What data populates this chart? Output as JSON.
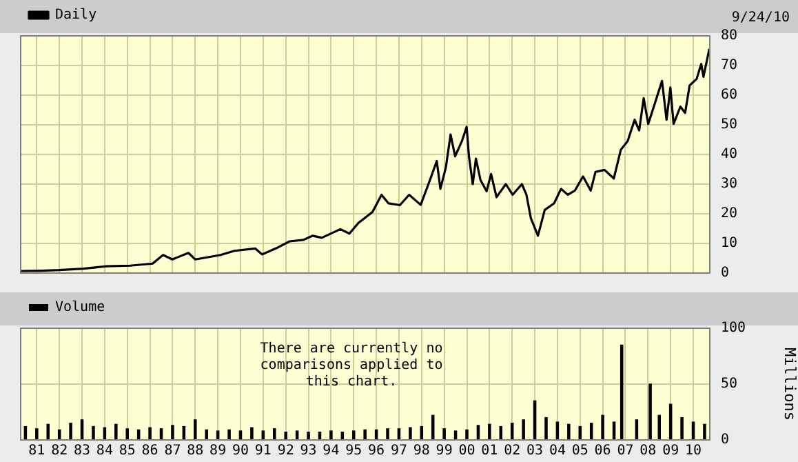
{
  "chart_data": [
    {
      "type": "line",
      "xlim": [
        1980.29,
        2010.73
      ],
      "xticks": [
        {
          "value": 1981,
          "label": null
        },
        {
          "value": 1982,
          "label": null
        },
        {
          "value": 1983,
          "label": null
        },
        {
          "value": 1984,
          "label": null
        },
        {
          "value": 1985,
          "label": null
        },
        {
          "value": 1986,
          "label": null
        },
        {
          "value": 1987,
          "label": null
        },
        {
          "value": 1988,
          "label": null
        },
        {
          "value": 1989,
          "label": null
        },
        {
          "value": 1990,
          "label": null
        },
        {
          "value": 1991,
          "label": null
        },
        {
          "value": 1992,
          "label": null
        },
        {
          "value": 1993,
          "label": null
        },
        {
          "value": 1994,
          "label": null
        },
        {
          "value": 1995,
          "label": null
        },
        {
          "value": 1996,
          "label": null
        },
        {
          "value": 1997,
          "label": null
        },
        {
          "value": 1998,
          "label": null
        },
        {
          "value": 1999,
          "label": null
        },
        {
          "value": 2000,
          "label": null
        },
        {
          "value": 2001,
          "label": null
        },
        {
          "value": 2002,
          "label": null
        },
        {
          "value": 2003,
          "label": null
        },
        {
          "value": 2004,
          "label": null
        },
        {
          "value": 2005,
          "label": null
        },
        {
          "value": 2006,
          "label": null
        },
        {
          "value": 2007,
          "label": null
        },
        {
          "value": 2008,
          "label": null
        },
        {
          "value": 2009,
          "label": null
        },
        {
          "value": 2010,
          "label": null
        }
      ],
      "ylim": [
        0,
        80
      ],
      "yticks": [
        0,
        10,
        20,
        30,
        40,
        50,
        60,
        70,
        80
      ],
      "grid": true,
      "legend": "top left",
      "tick_labels": "y",
      "annotations": [
        "9/24/10"
      ],
      "series": [
        {
          "name": "Daily",
          "color": "#000000",
          "x": [
            1980.29,
            1981.2,
            1982.0,
            1983.07,
            1984.08,
            1985.12,
            1986.12,
            1986.58,
            1986.99,
            1987.7,
            1988.0,
            1989.12,
            1989.73,
            1990.65,
            1990.95,
            1991.56,
            1992.17,
            1992.78,
            1993.19,
            1993.59,
            1994.41,
            1994.81,
            1995.22,
            1995.83,
            1996.23,
            1996.54,
            1997.04,
            1997.45,
            1997.96,
            1998.37,
            1998.67,
            1998.83,
            1999.07,
            1999.28,
            1999.48,
            1999.79,
            1999.99,
            2000.09,
            2000.26,
            2000.4,
            2000.6,
            2000.87,
            2001.07,
            2001.31,
            2001.72,
            2002.02,
            2002.43,
            2002.63,
            2002.83,
            2003.14,
            2003.44,
            2003.85,
            2004.16,
            2004.46,
            2004.77,
            2005.13,
            2005.47,
            2005.68,
            2006.08,
            2006.49,
            2006.8,
            2007.1,
            2007.41,
            2007.61,
            2007.81,
            2008.01,
            2008.32,
            2008.62,
            2008.82,
            2008.99,
            2009.13,
            2009.43,
            2009.64,
            2009.84,
            2010.15,
            2010.35,
            2010.45,
            2010.71
          ],
          "values": [
            0.7,
            0.8,
            1.0,
            1.5,
            2.3,
            2.5,
            3.2,
            6.1,
            4.6,
            6.8,
            4.6,
            6.1,
            7.5,
            8.3,
            6.3,
            8.3,
            10.7,
            11.2,
            12.6,
            11.9,
            14.8,
            13.3,
            17,
            20.6,
            26.4,
            23.5,
            22.9,
            26.4,
            23,
            31.4,
            37.8,
            28.4,
            35.6,
            46.7,
            39.4,
            44.7,
            49.3,
            39.4,
            30,
            38.6,
            31.4,
            27.6,
            33.4,
            25.6,
            30,
            26.4,
            30,
            26.4,
            18.4,
            12.6,
            21.3,
            23.5,
            28.4,
            26.4,
            27.8,
            32.6,
            27.8,
            34.1,
            34.8,
            31.9,
            41.6,
            44.5,
            51.7,
            48.1,
            59,
            50.3,
            57.6,
            64.8,
            51.7,
            62.6,
            50.3,
            56.1,
            54,
            63.3,
            65.5,
            70.5,
            66.2,
            75.6
          ]
        }
      ]
    },
    {
      "type": "bar",
      "xlim": [
        1980.29,
        2010.73
      ],
      "xticks": [
        {
          "value": 1981,
          "label": "81"
        },
        {
          "value": 1982,
          "label": "82"
        },
        {
          "value": 1983,
          "label": "83"
        },
        {
          "value": 1984,
          "label": "84"
        },
        {
          "value": 1985,
          "label": "85"
        },
        {
          "value": 1986,
          "label": "86"
        },
        {
          "value": 1987,
          "label": "87"
        },
        {
          "value": 1988,
          "label": "88"
        },
        {
          "value": 1989,
          "label": "89"
        },
        {
          "value": 1990,
          "label": "90"
        },
        {
          "value": 1991,
          "label": "91"
        },
        {
          "value": 1992,
          "label": "92"
        },
        {
          "value": 1993,
          "label": "93"
        },
        {
          "value": 1994,
          "label": "94"
        },
        {
          "value": 1995,
          "label": "95"
        },
        {
          "value": 1996,
          "label": "96"
        },
        {
          "value": 1997,
          "label": "97"
        },
        {
          "value": 1998,
          "label": "98"
        },
        {
          "value": 1999,
          "label": "99"
        },
        {
          "value": 2000,
          "label": "00"
        },
        {
          "value": 2001,
          "label": "01"
        },
        {
          "value": 2002,
          "label": "02"
        },
        {
          "value": 2003,
          "label": "03"
        },
        {
          "value": 2004,
          "label": "04"
        },
        {
          "value": 2005,
          "label": "05"
        },
        {
          "value": 2006,
          "label": "06"
        },
        {
          "value": 2007,
          "label": "07"
        },
        {
          "value": 2008,
          "label": "08"
        },
        {
          "value": 2009,
          "label": "09"
        },
        {
          "value": 2010,
          "label": "10"
        }
      ],
      "ylim": [
        0,
        100
      ],
      "yticks": [
        0,
        50,
        100
      ],
      "ylabel": "Millions",
      "grid": true,
      "legend": "top left",
      "annotations": [
        "There are currently no comparisons applied to this chart."
      ],
      "series": [
        {
          "name": "Volume",
          "color": "#000000",
          "x": [
            1980.5,
            1981,
            1981.5,
            1982,
            1982.5,
            1983,
            1983.5,
            1984,
            1984.5,
            1985,
            1985.5,
            1986,
            1986.5,
            1987,
            1987.5,
            1988,
            1988.5,
            1989,
            1989.5,
            1990,
            1990.5,
            1991,
            1991.5,
            1992,
            1992.5,
            1993,
            1993.5,
            1994,
            1994.5,
            1995,
            1995.5,
            1996,
            1996.5,
            1997,
            1997.5,
            1998,
            1998.5,
            1999,
            1999.5,
            2000,
            2000.5,
            2001,
            2001.5,
            2002,
            2002.5,
            2003,
            2003.5,
            2004,
            2004.5,
            2005,
            2005.5,
            2006,
            2006.5,
            2006.84,
            2007.5,
            2008.1,
            2008.5,
            2009,
            2009.5,
            2010,
            2010.5
          ],
          "values": [
            12,
            10,
            14,
            9,
            15,
            18,
            12,
            11,
            14,
            10,
            9,
            11,
            10,
            13,
            12,
            18,
            9,
            8,
            9,
            8,
            11,
            8,
            10,
            7,
            8,
            7,
            7,
            8,
            7,
            8,
            9,
            9,
            10,
            10,
            11,
            12,
            22,
            10,
            8,
            9,
            13,
            14,
            12,
            15,
            18,
            35,
            20,
            16,
            14,
            12,
            15,
            22,
            16,
            85,
            18,
            50,
            22,
            32,
            20,
            16,
            14
          ]
        }
      ]
    }
  ]
}
